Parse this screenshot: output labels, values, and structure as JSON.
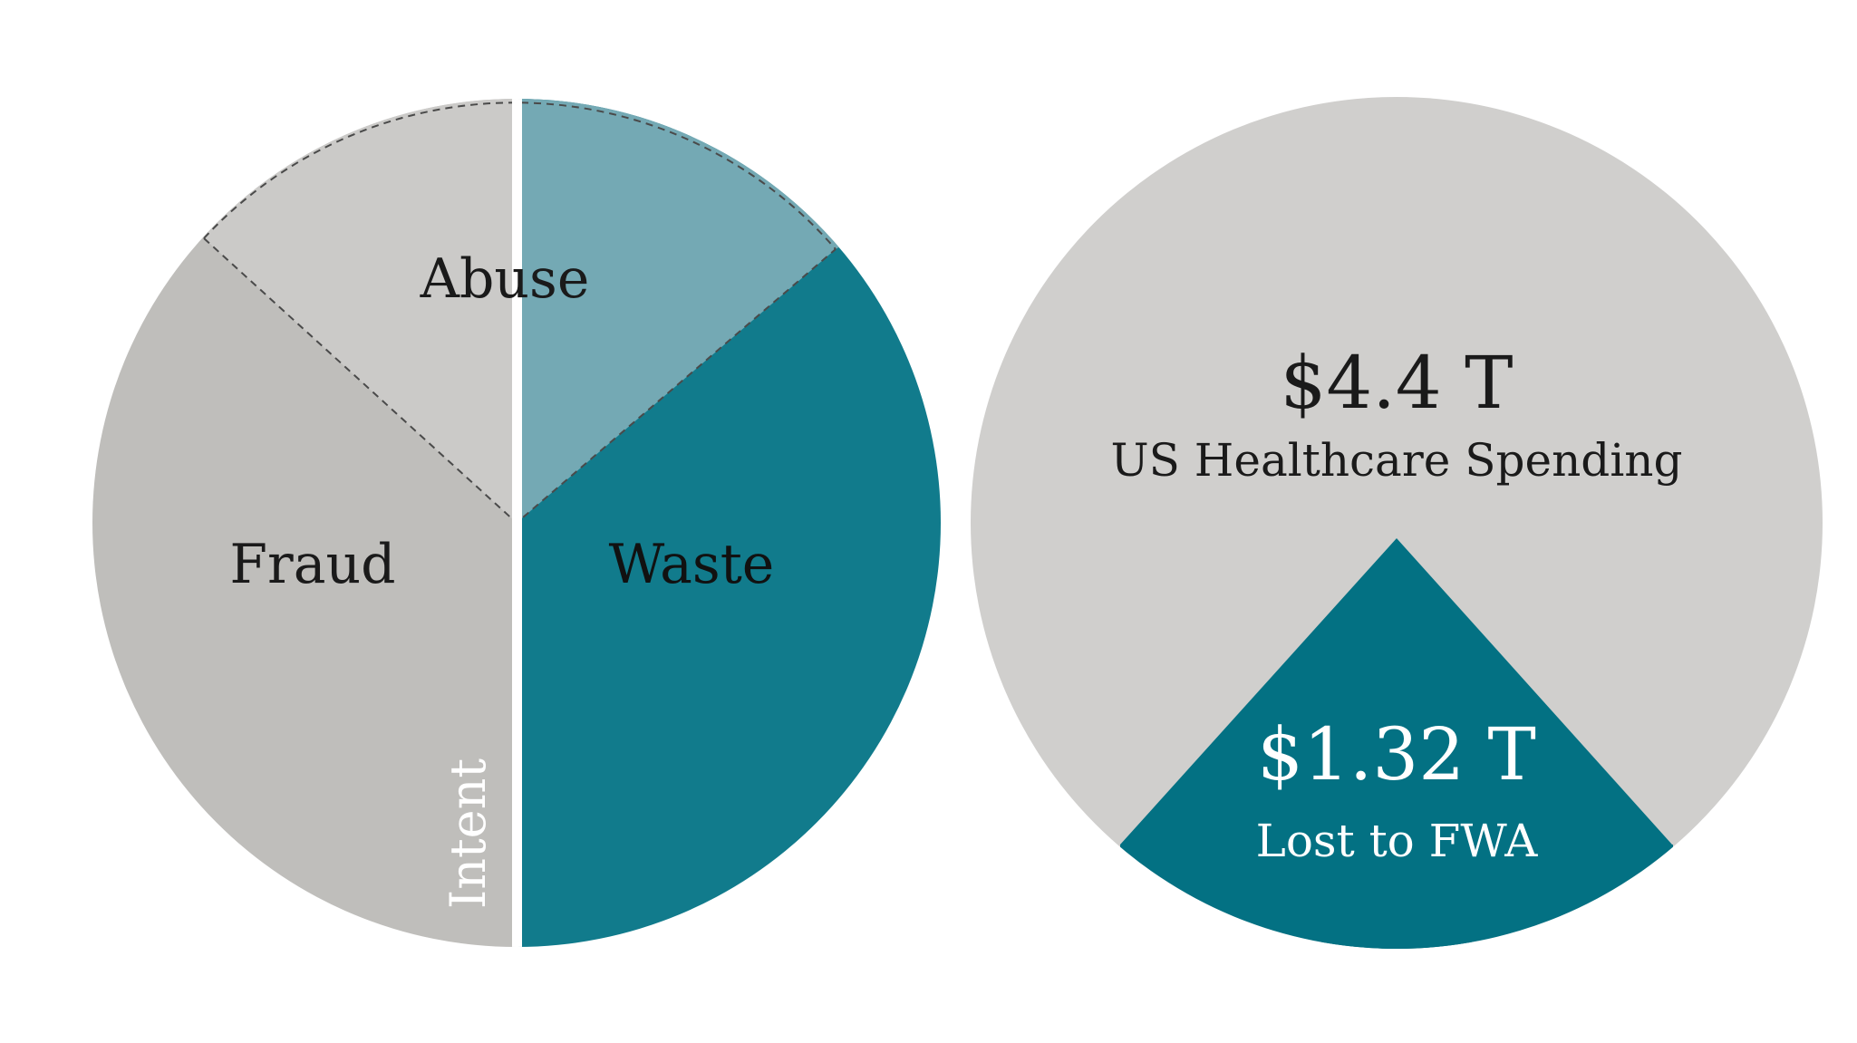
{
  "left_diagram": {
    "segments": {
      "abuse": {
        "label": "Abuse",
        "color": "#cbcac8"
      },
      "abuse_waste": {
        "color": "#74a9b4"
      },
      "fraud": {
        "label": "Fraud",
        "color": "#bfbebb"
      },
      "waste": {
        "label": "Waste",
        "color": "#117b8c"
      }
    },
    "divider_label": "Intent",
    "divider_color": "#ffffff"
  },
  "right_diagram": {
    "background_color": "#d0cfcd",
    "accent_color": "#037183",
    "total": {
      "value": "$4.4 T",
      "label": "US Healthcare Spending"
    },
    "lost": {
      "value": "$1.32 T",
      "label": "Lost to FWA"
    }
  }
}
